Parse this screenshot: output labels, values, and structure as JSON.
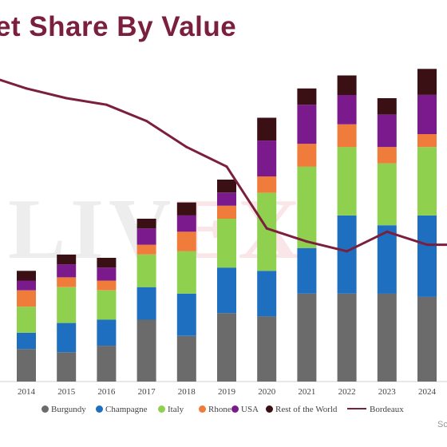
{
  "title": "ket Share By Value",
  "watermark": {
    "left": "LIV",
    "mark": "EX"
  },
  "source_label": "Sc",
  "chart_data": {
    "type": "bar",
    "stacked": true,
    "categories": [
      "2014",
      "2015",
      "2016",
      "2017",
      "2018",
      "2019",
      "2020",
      "2021",
      "2022",
      "2023",
      "2024"
    ],
    "series": [
      {
        "name": "Burgundy",
        "color": "#6b6b6b",
        "values": [
          10,
          9,
          11,
          19,
          14,
          21,
          20,
          27,
          27,
          27,
          26
        ]
      },
      {
        "name": "Champagne",
        "color": "#1f6fc0",
        "values": [
          5,
          9,
          8,
          10,
          13,
          14,
          14,
          14,
          24,
          21,
          25
        ]
      },
      {
        "name": "Italy",
        "color": "#8fd14f",
        "values": [
          8,
          11,
          9,
          10,
          13,
          15,
          24,
          25,
          21,
          19,
          21
        ]
      },
      {
        "name": "Rhone",
        "color": "#ef7c3a",
        "values": [
          5,
          3,
          3,
          3,
          6,
          4,
          5,
          7,
          7,
          5,
          4
        ]
      },
      {
        "name": "USA",
        "color": "#7a1a8c",
        "values": [
          3,
          4,
          4,
          5,
          5,
          4,
          11,
          12,
          9,
          10,
          12
        ]
      },
      {
        "name": "Rest of the World",
        "color": "#3a1014",
        "values": [
          3,
          3,
          3,
          3,
          4,
          4,
          7,
          5,
          6,
          5,
          8
        ]
      }
    ],
    "line_series": {
      "name": "Bordeaux",
      "color": "#7a1f3d",
      "values": [
        90,
        87,
        85,
        80,
        72,
        66,
        47,
        43,
        40,
        46,
        42
      ]
    },
    "line_lead_in": {
      "x_category_offset": -1,
      "value": 94
    },
    "ylim": [
      0,
      100
    ],
    "legend": {
      "position": "bottom"
    },
    "grid": false
  }
}
